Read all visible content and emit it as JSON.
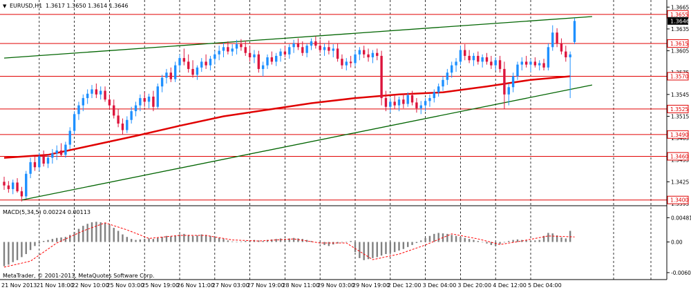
{
  "header": {
    "symbol_label": "EURUSD,H1",
    "ohlc": "1.3617 1.3650 1.3614 1.3646",
    "marker": "▼"
  },
  "indicator_label": "MACD(5,34,5) 0.00224 0.00113",
  "copyright": "MetaTrader, © 2001-2013, MetaQuotes Software Corp.",
  "colors": {
    "background": "#ffffff",
    "grid": "#000000",
    "bull_candle": "#1e90ff",
    "bear_candle": "#dc143c",
    "moving_average": "#e00000",
    "channel_line": "#006400",
    "level_line": "#e00000",
    "histogram": "#808080",
    "signal_line": "#ff0000"
  },
  "chart_data": [
    {
      "type": "candlestick",
      "title": "EURUSD,H1",
      "x_ticks": [
        "21 Nov 2013",
        "21 Nov 18:00",
        "22 Nov 10:00",
        "25 Nov 03:00",
        "25 Nov 19:00",
        "26 Nov 11:00",
        "27 Nov 03:00",
        "27 Nov 19:00",
        "28 Nov 11:00",
        "29 Nov 03:00",
        "29 Nov 19:00",
        "2 Dec 12:00",
        "3 Dec 04:00",
        "3 Dec 20:00",
        "4 Dec 12:00",
        "5 Dec 04:00"
      ],
      "y_ticks": [
        "1.3665",
        "1.3635",
        "1.3605",
        "1.3575",
        "1.3545",
        "1.3515",
        "1.3485",
        "1.3455",
        "1.3425",
        "1.3395"
      ],
      "ylim": [
        1.3395,
        1.367
      ],
      "grid": true,
      "current_price": "1.3646",
      "horizontal_levels": [
        "1.3655",
        "1.3615",
        "1.3570",
        "1.3525",
        "1.3490",
        "1.3460",
        "1.3400"
      ],
      "candles": [
        [
          1.3425,
          1.3432,
          1.3414,
          1.342
        ],
        [
          1.342,
          1.3426,
          1.341,
          1.3415
        ],
        [
          1.3415,
          1.3428,
          1.3408,
          1.3424
        ],
        [
          1.3424,
          1.343,
          1.341,
          1.3412
        ],
        [
          1.3412,
          1.3418,
          1.3398,
          1.3405
        ],
        [
          1.3405,
          1.344,
          1.3402,
          1.3436
        ],
        [
          1.3436,
          1.3458,
          1.343,
          1.3452
        ],
        [
          1.3452,
          1.346,
          1.344,
          1.3445
        ],
        [
          1.3445,
          1.3465,
          1.344,
          1.346
        ],
        [
          1.346,
          1.3468,
          1.3446,
          1.345
        ],
        [
          1.345,
          1.3462,
          1.3444,
          1.3458
        ],
        [
          1.3458,
          1.347,
          1.345,
          1.3464
        ],
        [
          1.3464,
          1.3475,
          1.3455,
          1.3468
        ],
        [
          1.3468,
          1.3478,
          1.346,
          1.3462
        ],
        [
          1.3462,
          1.348,
          1.3458,
          1.3476
        ],
        [
          1.3476,
          1.35,
          1.347,
          1.3495
        ],
        [
          1.3495,
          1.3522,
          1.349,
          1.3518
        ],
        [
          1.3518,
          1.3535,
          1.351,
          1.353
        ],
        [
          1.353,
          1.3545,
          1.3522,
          1.354
        ],
        [
          1.354,
          1.3552,
          1.3532,
          1.3546
        ],
        [
          1.3546,
          1.3558,
          1.354,
          1.3552
        ],
        [
          1.3552,
          1.356,
          1.354,
          1.3545
        ],
        [
          1.3545,
          1.3556,
          1.3538,
          1.355
        ],
        [
          1.355,
          1.3556,
          1.3535,
          1.3538
        ],
        [
          1.3538,
          1.3545,
          1.3525,
          1.353
        ],
        [
          1.353,
          1.3538,
          1.3512,
          1.3516
        ],
        [
          1.3516,
          1.3525,
          1.35,
          1.3505
        ],
        [
          1.3505,
          1.3512,
          1.349,
          1.3496
        ],
        [
          1.3496,
          1.3515,
          1.3492,
          1.351
        ],
        [
          1.351,
          1.3528,
          1.3505,
          1.3522
        ],
        [
          1.3522,
          1.3535,
          1.3515,
          1.353
        ],
        [
          1.353,
          1.3545,
          1.3522,
          1.354
        ],
        [
          1.354,
          1.3548,
          1.3528,
          1.3535
        ],
        [
          1.3535,
          1.3546,
          1.3526,
          1.3542
        ],
        [
          1.3542,
          1.355,
          1.3522,
          1.3528
        ],
        [
          1.3528,
          1.356,
          1.3525,
          1.3556
        ],
        [
          1.3556,
          1.3572,
          1.3548,
          1.3568
        ],
        [
          1.3568,
          1.358,
          1.356,
          1.3575
        ],
        [
          1.3575,
          1.3582,
          1.3562,
          1.3566
        ],
        [
          1.3566,
          1.359,
          1.3562,
          1.3585
        ],
        [
          1.3585,
          1.36,
          1.3578,
          1.3595
        ],
        [
          1.3595,
          1.3608,
          1.3585,
          1.359
        ],
        [
          1.359,
          1.36,
          1.3575,
          1.358
        ],
        [
          1.358,
          1.3592,
          1.3568,
          1.3572
        ],
        [
          1.3572,
          1.3585,
          1.3565,
          1.3582
        ],
        [
          1.3582,
          1.3595,
          1.3576,
          1.359
        ],
        [
          1.359,
          1.36,
          1.358,
          1.3585
        ],
        [
          1.3585,
          1.3598,
          1.3578,
          1.3594
        ],
        [
          1.3594,
          1.3605,
          1.3586,
          1.36
        ],
        [
          1.36,
          1.3612,
          1.3592,
          1.3605
        ],
        [
          1.3605,
          1.3616,
          1.3596,
          1.361
        ],
        [
          1.361,
          1.3618,
          1.36,
          1.3604
        ],
        [
          1.3604,
          1.3614,
          1.3598,
          1.3608
        ],
        [
          1.3608,
          1.362,
          1.36,
          1.3614
        ],
        [
          1.3614,
          1.3621,
          1.3605,
          1.361
        ],
        [
          1.361,
          1.3619,
          1.3598,
          1.3602
        ],
        [
          1.3602,
          1.3612,
          1.359,
          1.3596
        ],
        [
          1.3596,
          1.3606,
          1.3588,
          1.36
        ],
        [
          1.36,
          1.3605,
          1.3575,
          1.358
        ],
        [
          1.358,
          1.359,
          1.357,
          1.3585
        ],
        [
          1.3585,
          1.36,
          1.358,
          1.3596
        ],
        [
          1.3596,
          1.3604,
          1.3586,
          1.359
        ],
        [
          1.359,
          1.3602,
          1.3584,
          1.3598
        ],
        [
          1.3598,
          1.3608,
          1.359,
          1.3604
        ],
        [
          1.3604,
          1.3612,
          1.3596,
          1.36
        ],
        [
          1.36,
          1.3614,
          1.3594,
          1.361
        ],
        [
          1.361,
          1.362,
          1.3602,
          1.3615
        ],
        [
          1.3615,
          1.3622,
          1.3606,
          1.361
        ],
        [
          1.361,
          1.3618,
          1.3598,
          1.3602
        ],
        [
          1.3602,
          1.3615,
          1.3596,
          1.3612
        ],
        [
          1.3612,
          1.3622,
          1.3606,
          1.3618
        ],
        [
          1.3618,
          1.3625,
          1.3608,
          1.3612
        ],
        [
          1.3612,
          1.362,
          1.3602,
          1.3606
        ],
        [
          1.3606,
          1.3615,
          1.3598,
          1.361
        ],
        [
          1.361,
          1.3619,
          1.36,
          1.3605
        ],
        [
          1.3605,
          1.3614,
          1.3596,
          1.3608
        ],
        [
          1.3608,
          1.3615,
          1.359,
          1.3594
        ],
        [
          1.3594,
          1.36,
          1.358,
          1.3585
        ],
        [
          1.3585,
          1.3595,
          1.3578,
          1.359
        ],
        [
          1.359,
          1.3598,
          1.3582,
          1.3588
        ],
        [
          1.3588,
          1.3605,
          1.3584,
          1.36
        ],
        [
          1.36,
          1.361,
          1.3592,
          1.3606
        ],
        [
          1.3606,
          1.3612,
          1.3595,
          1.36
        ],
        [
          1.36,
          1.3608,
          1.359,
          1.3596
        ],
        [
          1.3596,
          1.3606,
          1.3588,
          1.3602
        ],
        [
          1.3602,
          1.3608,
          1.3592,
          1.3598
        ],
        [
          1.3598,
          1.3605,
          1.353,
          1.354
        ],
        [
          1.354,
          1.355,
          1.3522,
          1.3528
        ],
        [
          1.3528,
          1.354,
          1.352,
          1.3535
        ],
        [
          1.3535,
          1.3545,
          1.3525,
          1.353
        ],
        [
          1.353,
          1.3542,
          1.3522,
          1.3538
        ],
        [
          1.3538,
          1.3546,
          1.3526,
          1.3532
        ],
        [
          1.3532,
          1.3548,
          1.3528,
          1.3544
        ],
        [
          1.3544,
          1.355,
          1.353,
          1.3534
        ],
        [
          1.3534,
          1.354,
          1.352,
          1.3526
        ],
        [
          1.3526,
          1.3536,
          1.3518,
          1.353
        ],
        [
          1.353,
          1.354,
          1.3522,
          1.3536
        ],
        [
          1.3536,
          1.3545,
          1.3528,
          1.354
        ],
        [
          1.354,
          1.3552,
          1.3534,
          1.3548
        ],
        [
          1.3548,
          1.356,
          1.3542,
          1.3556
        ],
        [
          1.3556,
          1.357,
          1.355,
          1.3565
        ],
        [
          1.3565,
          1.358,
          1.3558,
          1.3575
        ],
        [
          1.3575,
          1.359,
          1.3568,
          1.3585
        ],
        [
          1.3585,
          1.3595,
          1.3576,
          1.359
        ],
        [
          1.359,
          1.3612,
          1.3585,
          1.3606
        ],
        [
          1.3606,
          1.3614,
          1.3592,
          1.3598
        ],
        [
          1.3598,
          1.3606,
          1.3588,
          1.3592
        ],
        [
          1.3592,
          1.3602,
          1.3584,
          1.3598
        ],
        [
          1.3598,
          1.3604,
          1.3586,
          1.359
        ],
        [
          1.359,
          1.36,
          1.3582,
          1.3596
        ],
        [
          1.3596,
          1.3602,
          1.3586,
          1.359
        ],
        [
          1.359,
          1.3598,
          1.358,
          1.3585
        ],
        [
          1.3585,
          1.3596,
          1.3578,
          1.3592
        ],
        [
          1.3592,
          1.3598,
          1.3575,
          1.358
        ],
        [
          1.358,
          1.359,
          1.3525,
          1.3545
        ],
        [
          1.3545,
          1.356,
          1.353,
          1.3555
        ],
        [
          1.3555,
          1.3575,
          1.3548,
          1.357
        ],
        [
          1.357,
          1.359,
          1.3565,
          1.3586
        ],
        [
          1.3586,
          1.3596,
          1.3578,
          1.359
        ],
        [
          1.359,
          1.3598,
          1.3582,
          1.3586
        ],
        [
          1.3586,
          1.3594,
          1.3576,
          1.359
        ],
        [
          1.359,
          1.3596,
          1.3582,
          1.3585
        ],
        [
          1.3585,
          1.3592,
          1.3578,
          1.3588
        ],
        [
          1.3588,
          1.3594,
          1.3578,
          1.3582
        ],
        [
          1.3582,
          1.3615,
          1.3578,
          1.361
        ],
        [
          1.361,
          1.364,
          1.3605,
          1.363
        ],
        [
          1.363,
          1.3636,
          1.361,
          1.3615
        ],
        [
          1.3615,
          1.3622,
          1.36,
          1.3604
        ],
        [
          1.3604,
          1.3612,
          1.359,
          1.3596
        ],
        [
          1.3596,
          1.3604,
          1.354,
          1.36
        ],
        [
          1.3617,
          1.365,
          1.3614,
          1.3646
        ]
      ],
      "moving_average": {
        "name": "",
        "points": [
          [
            0,
            1.3458
          ],
          [
            10,
            1.3462
          ],
          [
            20,
            1.3475
          ],
          [
            30,
            1.3488
          ],
          [
            40,
            1.3502
          ],
          [
            50,
            1.3515
          ],
          [
            60,
            1.3524
          ],
          [
            70,
            1.3533
          ],
          [
            80,
            1.354
          ],
          [
            90,
            1.3545
          ],
          [
            100,
            1.3548
          ],
          [
            110,
            1.3556
          ],
          [
            120,
            1.3565
          ],
          [
            129,
            1.357
          ]
        ]
      },
      "trendlines": [
        {
          "from": [
            0,
            1.3595
          ],
          "to": [
            134,
            1.3652
          ]
        },
        {
          "from": [
            4,
            1.34
          ],
          "to": [
            134,
            1.3558
          ]
        }
      ]
    },
    {
      "type": "bar",
      "title": "MACD(5,34,5) 0.00224 0.00113",
      "y_ticks": [
        "0.00481",
        "0.00",
        "-0.00608"
      ],
      "ylim": [
        -0.0065,
        0.005
      ],
      "histogram": [
        -0.0048,
        -0.0045,
        -0.004,
        -0.0036,
        -0.003,
        -0.0024,
        -0.0016,
        -0.0008,
        -0.0003,
        0.0002,
        0.0004,
        0.0006,
        0.0008,
        0.0009,
        0.001,
        0.0014,
        0.002,
        0.0026,
        0.0032,
        0.0036,
        0.0039,
        0.004,
        0.0039,
        0.0037,
        0.0034,
        0.0028,
        0.0022,
        0.0015,
        0.001,
        0.0006,
        0.0004,
        0.0005,
        0.0006,
        0.0007,
        0.0006,
        0.0008,
        0.001,
        0.0012,
        0.0011,
        0.0013,
        0.0015,
        0.0016,
        0.0014,
        0.0012,
        0.0013,
        0.0015,
        0.0014,
        0.0012,
        0.001,
        0.0008,
        0.0006,
        0.0003,
        0.0001,
        0.0,
        0.0001,
        0.0002,
        0.0003,
        0.0004,
        0.0003,
        0.0002,
        0.0004,
        0.0005,
        0.0006,
        0.0007,
        0.0006,
        0.0007,
        0.0008,
        0.0007,
        0.0006,
        0.0004,
        0.0002,
        0.0,
        -0.0003,
        -0.0006,
        -0.0008,
        -0.0005,
        -0.0003,
        -0.0001,
        0.0,
        0.0002,
        -0.002,
        -0.0032,
        -0.0036,
        -0.0034,
        -0.0032,
        -0.003,
        -0.0027,
        -0.0024,
        -0.0022,
        -0.002,
        -0.0017,
        -0.0014,
        -0.001,
        -0.0006,
        -0.0002,
        0.0003,
        0.0008,
        0.0012,
        0.0016,
        0.0018,
        0.0017,
        0.0016,
        0.0014,
        0.0012,
        0.001,
        0.0008,
        0.0006,
        0.0004,
        0.0002,
        0.0,
        -0.0003,
        -0.0006,
        -0.0008,
        -0.0004,
        -0.0001,
        0.0002,
        0.0004,
        0.0005,
        0.0004,
        0.0003,
        0.0002,
        0.0003,
        0.0004,
        0.0012,
        0.0018,
        0.0017,
        0.0013,
        0.0009,
        0.0007,
        0.0022
      ],
      "signal_line": {
        "name": "",
        "points": [
          [
            0,
            -0.005
          ],
          [
            6,
            -0.0038
          ],
          [
            12,
            -0.0002
          ],
          [
            18,
            0.0022
          ],
          [
            23,
            0.0038
          ],
          [
            28,
            0.0024
          ],
          [
            33,
            0.0007
          ],
          [
            40,
            0.0013
          ],
          [
            46,
            0.0013
          ],
          [
            52,
            0.0004
          ],
          [
            58,
            0.0002
          ],
          [
            66,
            0.0006
          ],
          [
            72,
            -0.0002
          ],
          [
            78,
            -0.0002
          ],
          [
            84,
            -0.0035
          ],
          [
            90,
            -0.0024
          ],
          [
            96,
            -0.0006
          ],
          [
            102,
            0.0016
          ],
          [
            108,
            0.0006
          ],
          [
            113,
            -0.0005
          ],
          [
            118,
            0.0002
          ],
          [
            124,
            0.0012
          ],
          [
            130,
            0.001
          ]
        ]
      }
    }
  ]
}
